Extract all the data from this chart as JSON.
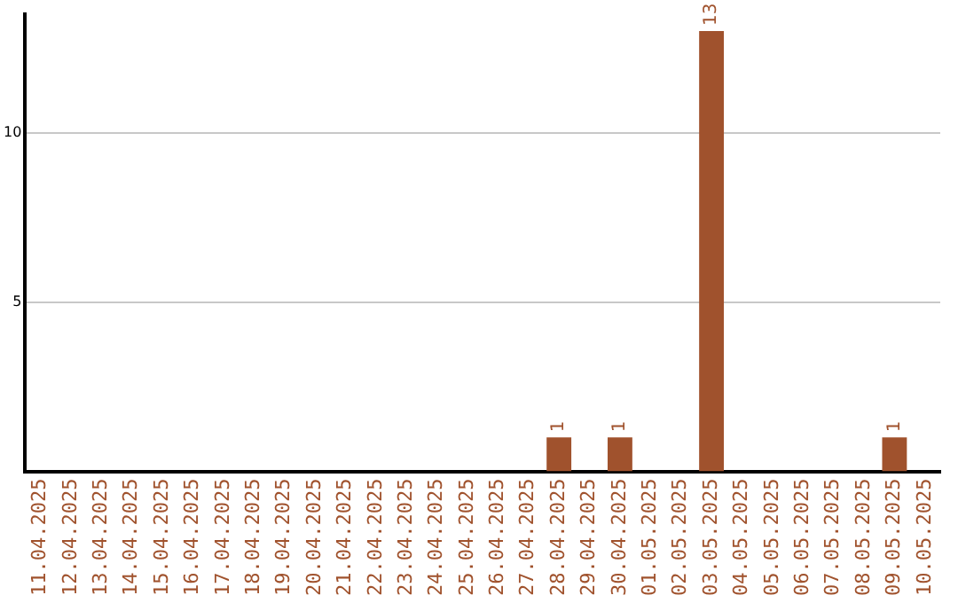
{
  "chart_data": {
    "type": "bar",
    "categories": [
      "11.04.2025",
      "12.04.2025",
      "13.04.2025",
      "14.04.2025",
      "15.04.2025",
      "16.04.2025",
      "17.04.2025",
      "18.04.2025",
      "19.04.2025",
      "20.04.2025",
      "21.04.2025",
      "22.04.2025",
      "23.04.2025",
      "24.04.2025",
      "25.04.2025",
      "26.04.2025",
      "27.04.2025",
      "28.04.2025",
      "29.04.2025",
      "30.04.2025",
      "01.05.2025",
      "02.05.2025",
      "03.05.2025",
      "04.05.2025",
      "05.05.2025",
      "06.05.2025",
      "07.05.2025",
      "08.05.2025",
      "09.05.2025",
      "10.05.2025"
    ],
    "values": [
      0,
      0,
      0,
      0,
      0,
      0,
      0,
      0,
      0,
      0,
      0,
      0,
      0,
      0,
      0,
      0,
      0,
      1,
      0,
      1,
      0,
      0,
      13,
      0,
      0,
      0,
      0,
      0,
      1,
      0
    ],
    "value_labels": [
      null,
      null,
      null,
      null,
      null,
      null,
      null,
      null,
      null,
      null,
      null,
      null,
      null,
      null,
      null,
      null,
      null,
      "1",
      null,
      "1",
      null,
      null,
      "13",
      null,
      null,
      null,
      null,
      null,
      "1",
      null
    ],
    "color": "#a0522d",
    "ylim": [
      0,
      13.5
    ],
    "yticks": [
      5,
      10
    ],
    "grid": "y"
  }
}
